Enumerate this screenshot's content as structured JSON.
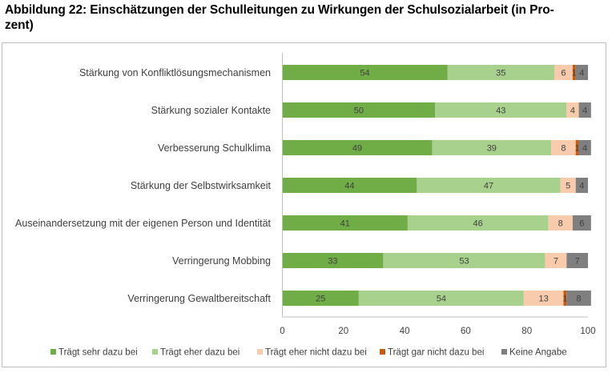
{
  "chart_data": {
    "type": "bar",
    "orientation": "horizontal",
    "stacked": true,
    "title": "Abbildung 22: Einschätzungen der Schulleitungen zu Wirkungen der Schulsozialarbeit (in Prozent)",
    "title_lines": [
      "Abbildung 22: Einschätzungen der Schulleitungen zu Wirkungen der Schulsozialarbeit (in Pro-",
      "zent)"
    ],
    "xlabel": "",
    "ylabel": "",
    "xlim": [
      0,
      100
    ],
    "xticks": [
      0,
      20,
      40,
      60,
      80,
      100
    ],
    "grid": false,
    "legend_position": "bottom",
    "categories": [
      "Stärkung von Konfliktlösungsmechanismen",
      "Stärkung sozialer Kontakte ",
      "Verbesserung Schulklima",
      "Stärkung der Selbstwirksamkeit ",
      "Auseinandersetzung mit der eigenen Person und Identität",
      "Verringerung Mobbing",
      "Verringerung Gewaltbereitschaft"
    ],
    "series": [
      {
        "name": "Trägt sehr dazu bei",
        "color": "#70AD47",
        "values": [
          54,
          50,
          49,
          44,
          41,
          33,
          25
        ]
      },
      {
        "name": "Trägt eher dazu bei",
        "color": "#A9D18E",
        "values": [
          35,
          43,
          39,
          47,
          46,
          53,
          54
        ]
      },
      {
        "name": "Trägt eher nicht dazu bei",
        "color": "#F8CBAD",
        "values": [
          6,
          4,
          8,
          5,
          8,
          7,
          13
        ]
      },
      {
        "name": "Trägt gar nicht dazu bei",
        "color": "#C55A11",
        "values": [
          1,
          0,
          1,
          0,
          0,
          0,
          1
        ]
      },
      {
        "name": "Keine Angabe",
        "color": "#7F7F7F",
        "values": [
          4,
          4,
          4,
          4,
          6,
          7,
          8
        ]
      }
    ]
  }
}
